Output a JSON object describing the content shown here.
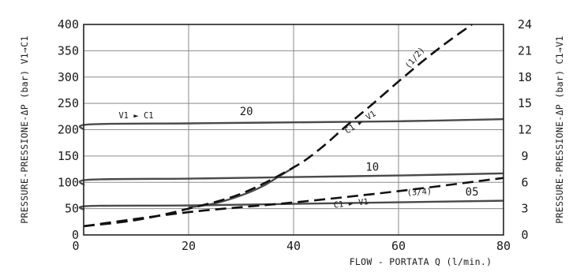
{
  "chart_data": {
    "type": "line",
    "title": "",
    "xlabel": "FLOW - PORTATA Q (l/min.)",
    "ylabel_left": "PRESSURE-PRESSIONE-ΔP (bar) V1→C1",
    "ylabel_right": "PRESSURE-PRESSIONE-ΔP (bar) C1→V1",
    "xlim": [
      0,
      80
    ],
    "ylim_left": [
      0,
      400
    ],
    "ylim_right": [
      0,
      24
    ],
    "x_ticks": [
      "0",
      "20",
      "40",
      "60",
      "80"
    ],
    "y_ticks_left": [
      "0",
      "50",
      "100",
      "150",
      "200",
      "250",
      "300",
      "350",
      "400"
    ],
    "y_ticks_right": [
      "0",
      "3",
      "6",
      "9",
      "12",
      "15",
      "18",
      "21",
      "24"
    ],
    "grid": true,
    "series": [
      {
        "name": "20",
        "axis": "left",
        "style": "solid",
        "points": [
          [
            0,
            200
          ],
          [
            1,
            210
          ],
          [
            20,
            212
          ],
          [
            40,
            214
          ],
          [
            60,
            216
          ],
          [
            80,
            220
          ]
        ]
      },
      {
        "name": "10",
        "axis": "left",
        "style": "solid",
        "points": [
          [
            0,
            95
          ],
          [
            1,
            105
          ],
          [
            20,
            107
          ],
          [
            40,
            110
          ],
          [
            60,
            113
          ],
          [
            80,
            117
          ]
        ]
      },
      {
        "name": "05",
        "axis": "left",
        "style": "solid",
        "points": [
          [
            0,
            48
          ],
          [
            1,
            55
          ],
          [
            20,
            56
          ],
          [
            40,
            59
          ],
          [
            60,
            62
          ],
          [
            80,
            65
          ]
        ]
      },
      {
        "name": "",
        "axis": "left",
        "style": "solid",
        "points": [
          [
            20,
            52
          ],
          [
            25,
            60
          ],
          [
            30,
            75
          ],
          [
            34,
            92
          ],
          [
            37,
            110
          ],
          [
            40,
            128
          ]
        ]
      },
      {
        "name": "C1 ► V1 (1/2)",
        "axis": "right",
        "style": "dashed",
        "points": [
          [
            0,
            1.0
          ],
          [
            10,
            1.7
          ],
          [
            20,
            3.0
          ],
          [
            30,
            4.7
          ],
          [
            40,
            7.7
          ],
          [
            45,
            9.8
          ],
          [
            50,
            12.4
          ],
          [
            55,
            14.9
          ],
          [
            60,
            17.5
          ],
          [
            65,
            20.0
          ],
          [
            70,
            22.3
          ],
          [
            74,
            24.0
          ]
        ]
      },
      {
        "name": "C1 ► V1 (3/4)",
        "axis": "right",
        "style": "dashed",
        "points": [
          [
            0,
            1.0
          ],
          [
            20,
            2.6
          ],
          [
            40,
            3.7
          ],
          [
            60,
            5.0
          ],
          [
            80,
            6.5
          ]
        ]
      }
    ],
    "annotations": [
      {
        "text": "V1 ► C1",
        "x": 10,
        "y": 222,
        "axis": "left",
        "size": "small"
      },
      {
        "text": "20",
        "x": 31,
        "y": 228,
        "axis": "left",
        "size": "large"
      },
      {
        "text": "10",
        "x": 55,
        "y": 122,
        "axis": "left",
        "size": "large"
      },
      {
        "text": "05",
        "x": 74,
        "y": 75,
        "axis": "left",
        "size": "large"
      },
      {
        "text": "C1 ► V1",
        "x": 53,
        "y": 12.6,
        "axis": "right",
        "size": "small",
        "angle": -33
      },
      {
        "text": "(1/2)",
        "x": 63.5,
        "y": 20.0,
        "axis": "right",
        "size": "small",
        "angle": -50
      },
      {
        "text": "C1 ► V1",
        "x": 51,
        "y": 3.3,
        "axis": "right",
        "size": "small",
        "angle": -6
      },
      {
        "text": "(3/4)",
        "x": 64,
        "y": 4.6,
        "axis": "right",
        "size": "small",
        "angle": -4
      }
    ]
  }
}
